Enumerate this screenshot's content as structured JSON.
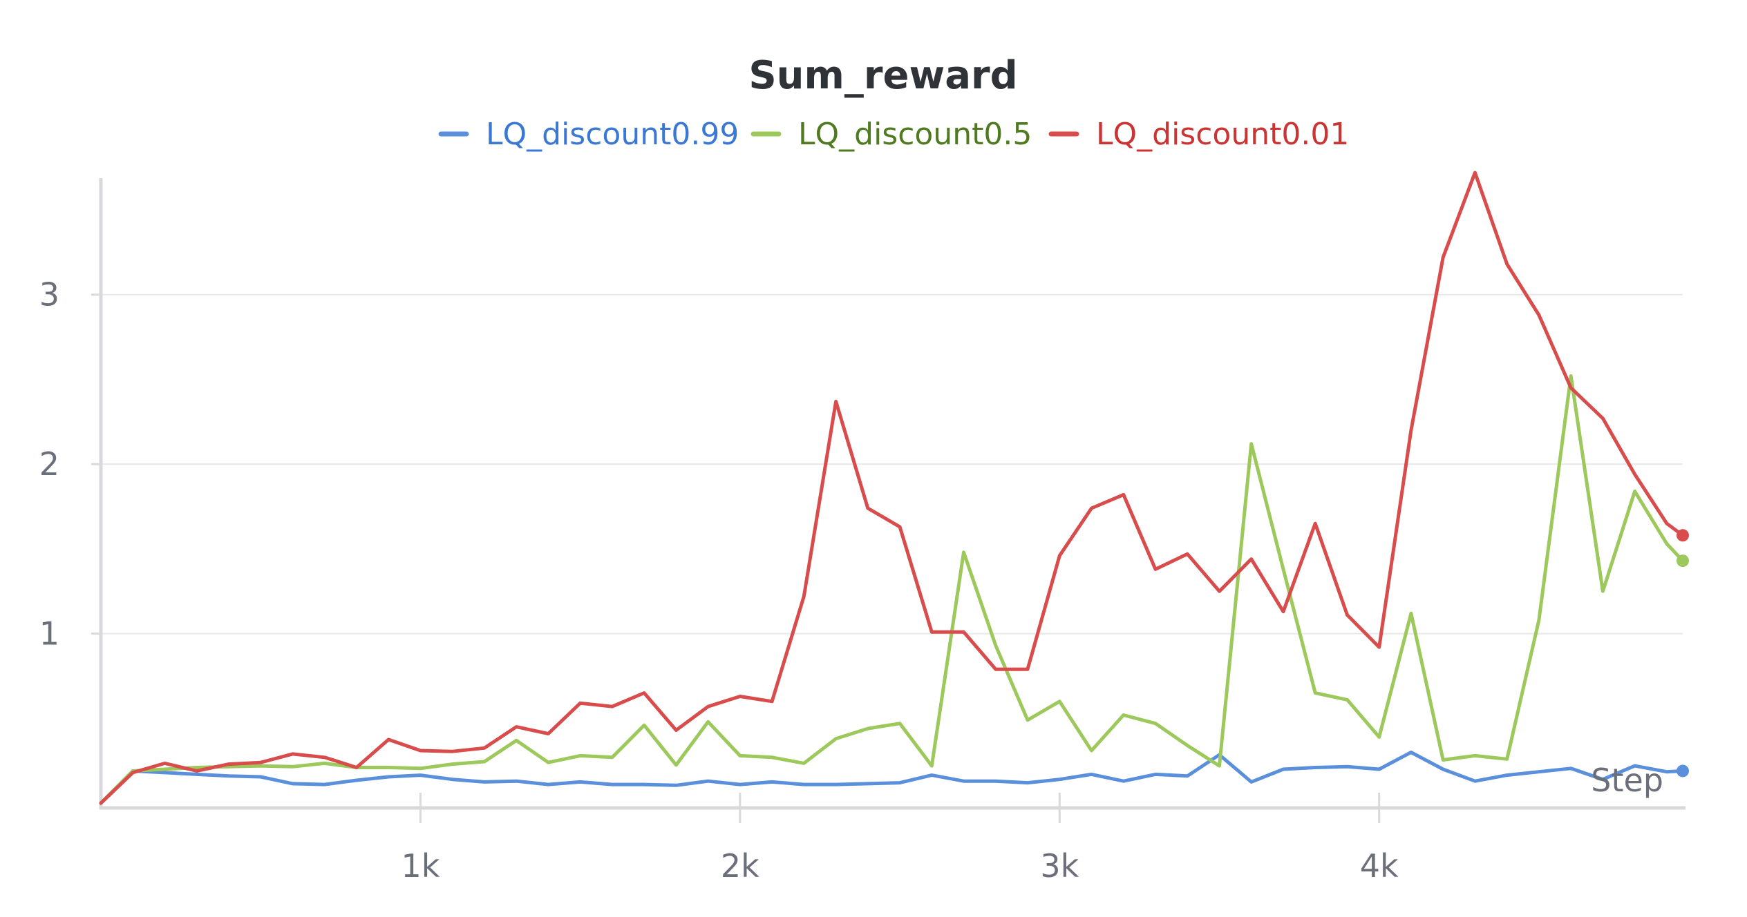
{
  "chart_data": {
    "type": "line",
    "title": "Sum_reward",
    "xlabel": "Step",
    "ylabel": "",
    "xlim": [
      0,
      4950
    ],
    "ylim": [
      -0.02,
      3.72
    ],
    "x_ticks": [
      {
        "value": 1000,
        "label": "1k"
      },
      {
        "value": 2000,
        "label": "2k"
      },
      {
        "value": 3000,
        "label": "3k"
      },
      {
        "value": 4000,
        "label": "4k"
      }
    ],
    "y_ticks": [
      {
        "value": 1,
        "label": "1"
      },
      {
        "value": 2,
        "label": "2"
      },
      {
        "value": 3,
        "label": "3"
      }
    ],
    "grid": "horizontal",
    "legend_position": "top",
    "x": [
      0,
      100,
      200,
      300,
      400,
      500,
      600,
      700,
      800,
      900,
      1000,
      1100,
      1200,
      1300,
      1400,
      1500,
      1600,
      1700,
      1800,
      1900,
      2000,
      2100,
      2200,
      2300,
      2400,
      2500,
      2600,
      2700,
      2800,
      2900,
      3000,
      3100,
      3200,
      3300,
      3400,
      3500,
      3600,
      3700,
      3800,
      3900,
      4000,
      4100,
      4200,
      4300,
      4400,
      4500,
      4600,
      4700,
      4800,
      4900,
      4950
    ],
    "series": [
      {
        "name": "LQ_discount0.99",
        "color": "#5a8fdc",
        "legend_text_color": "#3a78d4",
        "values": [
          0.0,
          0.19,
          0.18,
          0.17,
          0.16,
          0.155,
          0.115,
          0.11,
          0.135,
          0.155,
          0.165,
          0.14,
          0.125,
          0.13,
          0.11,
          0.125,
          0.11,
          0.11,
          0.105,
          0.13,
          0.11,
          0.125,
          0.11,
          0.11,
          0.115,
          0.12,
          0.165,
          0.13,
          0.13,
          0.12,
          0.14,
          0.17,
          0.13,
          0.17,
          0.16,
          0.285,
          0.125,
          0.2,
          0.21,
          0.215,
          0.2,
          0.3,
          0.2,
          0.13,
          0.165,
          0.185,
          0.205,
          0.14,
          0.22,
          0.185,
          0.19
        ]
      },
      {
        "name": "LQ_discount0.5",
        "color": "#9dc85b",
        "legend_text_color": "#4f7a1f",
        "values": [
          0.0,
          0.19,
          0.2,
          0.21,
          0.215,
          0.22,
          0.215,
          0.235,
          0.21,
          0.21,
          0.205,
          0.23,
          0.245,
          0.37,
          0.24,
          0.28,
          0.27,
          0.46,
          0.225,
          0.48,
          0.28,
          0.27,
          0.235,
          0.38,
          0.44,
          0.47,
          0.22,
          1.48,
          0.93,
          0.49,
          0.6,
          0.31,
          0.52,
          0.47,
          0.34,
          0.22,
          2.12,
          1.38,
          0.65,
          0.61,
          0.39,
          1.12,
          0.255,
          0.28,
          0.26,
          1.08,
          2.52,
          1.25,
          1.84,
          1.53,
          1.43
        ]
      },
      {
        "name": "LQ_discount0.01",
        "color": "#d94c4c",
        "legend_text_color": "#cc3333",
        "values": [
          0.0,
          0.18,
          0.235,
          0.19,
          0.23,
          0.24,
          0.29,
          0.27,
          0.21,
          0.375,
          0.31,
          0.305,
          0.325,
          0.45,
          0.41,
          0.59,
          0.57,
          0.65,
          0.43,
          0.57,
          0.63,
          0.6,
          1.22,
          2.37,
          1.74,
          1.63,
          1.01,
          1.01,
          0.79,
          0.79,
          1.46,
          1.74,
          1.82,
          1.38,
          1.47,
          1.25,
          1.44,
          1.13,
          1.65,
          1.11,
          0.92,
          2.2,
          3.22,
          3.72,
          3.18,
          2.88,
          2.45,
          2.27,
          1.94,
          1.65,
          1.58
        ]
      }
    ]
  }
}
